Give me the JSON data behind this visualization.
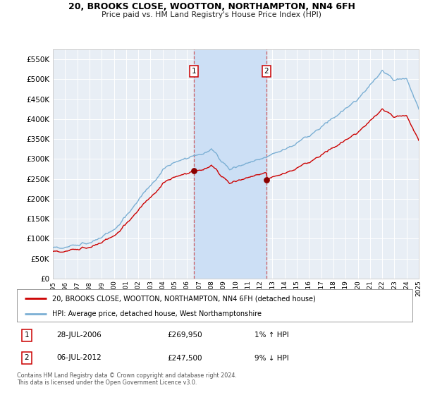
{
  "title": "20, BROOKS CLOSE, WOOTTON, NORTHAMPTON, NN4 6FH",
  "subtitle": "Price paid vs. HM Land Registry's House Price Index (HPI)",
  "legend_line1": "20, BROOKS CLOSE, WOOTTON, NORTHAMPTON, NN4 6FH (detached house)",
  "legend_line2": "HPI: Average price, detached house, West Northamptonshire",
  "transaction1_date": "28-JUL-2006",
  "transaction1_price": "£269,950",
  "transaction1_hpi": "1% ↑ HPI",
  "transaction2_date": "06-JUL-2012",
  "transaction2_price": "£247,500",
  "transaction2_hpi": "9% ↓ HPI",
  "footnote": "Contains HM Land Registry data © Crown copyright and database right 2024.\nThis data is licensed under the Open Government Licence v3.0.",
  "hpi_line_color": "#7bafd4",
  "price_line_color": "#cc0000",
  "dot_color": "#8b0000",
  "background_color": "#ffffff",
  "plot_bg_color": "#e8eef5",
  "grid_color": "#ffffff",
  "shading_color": "#ccdff5",
  "ylim_min": 0,
  "ylim_max": 575000,
  "yticks": [
    0,
    50000,
    100000,
    150000,
    200000,
    250000,
    300000,
    350000,
    400000,
    450000,
    500000,
    550000
  ],
  "transaction1_x": 2006.57,
  "transaction1_y": 269950,
  "transaction2_x": 2012.51,
  "transaction2_y": 247500,
  "shade_start1": 2006.57,
  "shade_end1": 2012.51,
  "xmin": 1995,
  "xmax": 2025
}
